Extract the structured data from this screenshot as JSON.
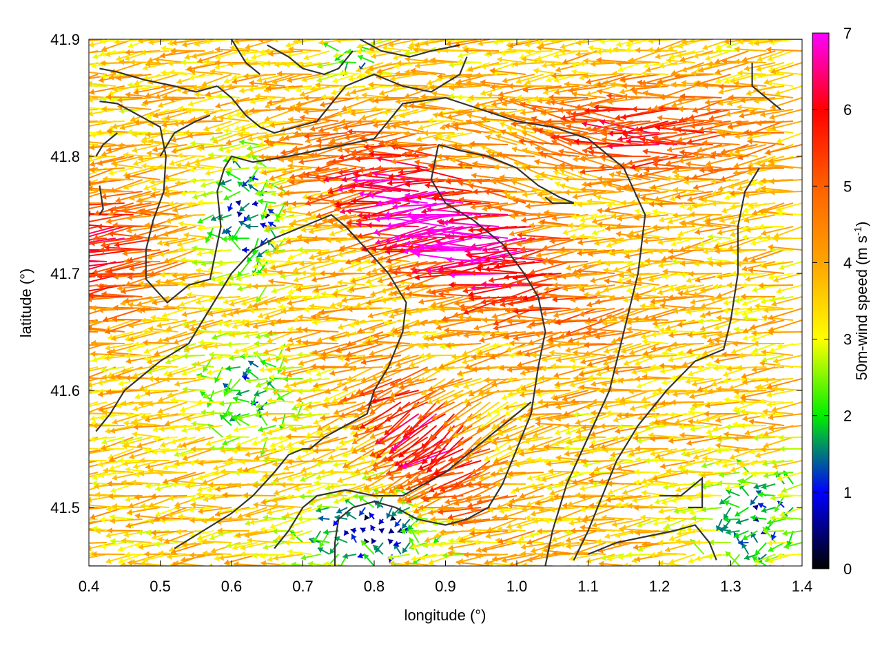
{
  "chart_data": {
    "type": "vector-field",
    "xlabel": "longitude (°)",
    "ylabel": "latitude (°)",
    "xlim": [
      0.4,
      1.4
    ],
    "ylim": [
      41.45,
      41.9
    ],
    "x_ticks": [
      0.4,
      0.5,
      0.6,
      0.7,
      0.8,
      0.9,
      1.0,
      1.1,
      1.2,
      1.3,
      1.4
    ],
    "x_tick_labels": [
      "0.4",
      "0.5",
      "0.6",
      "0.7",
      "0.8",
      "0.9",
      "1.0",
      "1.1",
      "1.2",
      "1.3",
      "1.4"
    ],
    "y_ticks": [
      41.5,
      41.6,
      41.7,
      41.8,
      41.9
    ],
    "y_tick_labels": [
      "41.5",
      "41.6",
      "41.7",
      "41.8",
      "41.9"
    ],
    "grid": false,
    "colorbar": {
      "label_main": "50m-wind speed (m s",
      "label_sup": "-1",
      "label_close": ")",
      "range": [
        0,
        7
      ],
      "ticks": [
        0,
        1,
        2,
        3,
        4,
        5,
        6,
        7
      ],
      "tick_labels": [
        "0",
        "1",
        "2",
        "3",
        "4",
        "5",
        "6",
        "7"
      ],
      "stops": [
        {
          "v": 0,
          "color": "#000000"
        },
        {
          "v": 1,
          "color": "#0000ff"
        },
        {
          "v": 2,
          "color": "#00ee00"
        },
        {
          "v": 3,
          "color": "#ffff00"
        },
        {
          "v": 4,
          "color": "#ffa500"
        },
        {
          "v": 5,
          "color": "#ff6000"
        },
        {
          "v": 6,
          "color": "#ff0000"
        },
        {
          "v": 7,
          "color": "#ff00ff"
        }
      ]
    },
    "wind_field": {
      "x_step": 0.0125,
      "y_step": 0.01,
      "direction": "mostly from east to west",
      "speed_range": [
        0,
        7
      ]
    },
    "contours": [
      [
        [
          0.415,
          41.875
        ],
        [
          0.44,
          41.872
        ],
        [
          0.48,
          41.865
        ],
        [
          0.52,
          41.86
        ],
        [
          0.55,
          41.855
        ],
        [
          0.58,
          41.86
        ]
      ],
      [
        [
          0.415,
          41.847
        ],
        [
          0.44,
          41.845
        ],
        [
          0.47,
          41.835
        ],
        [
          0.5,
          41.825
        ],
        [
          0.508,
          41.8
        ],
        [
          0.505,
          41.77
        ],
        [
          0.49,
          41.745
        ],
        [
          0.48,
          41.72
        ],
        [
          0.48,
          41.695
        ],
        [
          0.51,
          41.675
        ],
        [
          0.54,
          41.69
        ],
        [
          0.57,
          41.695
        ],
        [
          0.585,
          41.74
        ],
        [
          0.58,
          41.77
        ],
        [
          0.59,
          41.79
        ],
        [
          0.6,
          41.8
        ],
        [
          0.63,
          41.795
        ],
        [
          0.68,
          41.8
        ],
        [
          0.72,
          41.805
        ],
        [
          0.76,
          41.81
        ],
        [
          0.8,
          41.815
        ],
        [
          0.84,
          41.845
        ],
        [
          0.9,
          41.85
        ],
        [
          0.95,
          41.84
        ],
        [
          1.0,
          41.83
        ],
        [
          1.05,
          41.825
        ],
        [
          1.1,
          41.815
        ],
        [
          1.15,
          41.79
        ],
        [
          1.18,
          41.75
        ],
        [
          1.17,
          41.7
        ],
        [
          1.15,
          41.65
        ],
        [
          1.13,
          41.6
        ],
        [
          1.1,
          41.56
        ],
        [
          1.07,
          41.52
        ],
        [
          1.05,
          41.48
        ],
        [
          1.04,
          41.45
        ]
      ],
      [
        [
          0.415,
          41.775
        ],
        [
          0.42,
          41.755
        ],
        [
          0.415,
          41.75
        ]
      ],
      [
        [
          0.41,
          41.565
        ],
        [
          0.43,
          41.58
        ],
        [
          0.45,
          41.6
        ],
        [
          0.47,
          41.61
        ],
        [
          0.5,
          41.625
        ],
        [
          0.54,
          41.64
        ],
        [
          0.57,
          41.67
        ],
        [
          0.6,
          41.7
        ],
        [
          0.63,
          41.72
        ],
        [
          0.66,
          41.73
        ],
        [
          0.7,
          41.74
        ],
        [
          0.74,
          41.75
        ],
        [
          0.76,
          41.74
        ],
        [
          0.79,
          41.72
        ],
        [
          0.82,
          41.7
        ],
        [
          0.845,
          41.675
        ],
        [
          0.84,
          41.65
        ],
        [
          0.82,
          41.62
        ],
        [
          0.8,
          41.6
        ],
        [
          0.79,
          41.58
        ],
        [
          0.76,
          41.57
        ],
        [
          0.73,
          41.56
        ],
        [
          0.71,
          41.55
        ],
        [
          0.7,
          41.55
        ],
        [
          0.68,
          41.545
        ],
        [
          0.66,
          41.53
        ],
        [
          0.63,
          41.51
        ],
        [
          0.6,
          41.495
        ],
        [
          0.56,
          41.48
        ],
        [
          0.52,
          41.465
        ]
      ],
      [
        [
          0.58,
          41.86
        ],
        [
          0.6,
          41.85
        ],
        [
          0.62,
          41.835
        ],
        [
          0.64,
          41.825
        ],
        [
          0.66,
          41.82
        ],
        [
          0.69,
          41.825
        ],
        [
          0.72,
          41.83
        ],
        [
          0.74,
          41.845
        ],
        [
          0.76,
          41.86
        ],
        [
          0.8,
          41.87
        ],
        [
          0.84,
          41.86
        ],
        [
          0.88,
          41.855
        ],
        [
          0.92,
          41.87
        ],
        [
          0.93,
          41.885
        ]
      ],
      [
        [
          0.65,
          41.895
        ],
        [
          0.68,
          41.885
        ],
        [
          0.7,
          41.875
        ],
        [
          0.73,
          41.87
        ],
        [
          0.75,
          41.875
        ],
        [
          0.77,
          41.89
        ]
      ],
      [
        [
          0.78,
          41.9
        ],
        [
          0.81,
          41.89
        ],
        [
          0.85,
          41.885
        ],
        [
          0.88,
          41.89
        ],
        [
          0.92,
          41.895
        ]
      ],
      [
        [
          0.89,
          41.81
        ],
        [
          0.92,
          41.805
        ],
        [
          0.96,
          41.8
        ],
        [
          1.0,
          41.79
        ],
        [
          1.03,
          41.775
        ],
        [
          1.06,
          41.765
        ],
        [
          1.08,
          41.76
        ],
        [
          1.05,
          41.76
        ],
        [
          1.04,
          41.765
        ]
      ],
      [
        [
          0.89,
          41.81
        ],
        [
          0.88,
          41.78
        ],
        [
          0.9,
          41.76
        ],
        [
          0.94,
          41.745
        ],
        [
          0.98,
          41.725
        ],
        [
          1.01,
          41.7
        ],
        [
          1.03,
          41.68
        ],
        [
          1.04,
          41.65
        ],
        [
          1.03,
          41.62
        ],
        [
          1.02,
          41.58
        ],
        [
          1.0,
          41.55
        ],
        [
          0.98,
          41.52
        ],
        [
          0.96,
          41.5
        ],
        [
          0.93,
          41.49
        ],
        [
          0.9,
          41.485
        ],
        [
          0.86,
          41.49
        ],
        [
          0.83,
          41.5
        ],
        [
          0.8,
          41.505
        ],
        [
          0.77,
          41.5
        ],
        [
          0.75,
          41.49
        ],
        [
          0.745,
          41.47
        ],
        [
          0.745,
          41.45
        ]
      ],
      [
        [
          0.66,
          41.465
        ],
        [
          0.68,
          41.48
        ],
        [
          0.7,
          41.5
        ],
        [
          0.72,
          41.51
        ],
        [
          0.76,
          41.515
        ],
        [
          0.8,
          41.51
        ],
        [
          0.84,
          41.51
        ],
        [
          0.87,
          41.52
        ],
        [
          0.9,
          41.53
        ],
        [
          0.93,
          41.545
        ],
        [
          0.96,
          41.56
        ],
        [
          0.98,
          41.57
        ],
        [
          1.0,
          41.58
        ],
        [
          1.02,
          41.59
        ]
      ],
      [
        [
          1.34,
          41.79
        ],
        [
          1.32,
          41.77
        ],
        [
          1.31,
          41.74
        ],
        [
          1.31,
          41.7
        ],
        [
          1.3,
          41.66
        ],
        [
          1.29,
          41.635
        ],
        [
          1.25,
          41.625
        ],
        [
          1.21,
          41.6
        ],
        [
          1.17,
          41.57
        ],
        [
          1.14,
          41.54
        ],
        [
          1.12,
          41.51
        ],
        [
          1.1,
          41.48
        ],
        [
          1.08,
          41.455
        ]
      ],
      [
        [
          1.33,
          41.88
        ],
        [
          1.33,
          41.86
        ],
        [
          1.35,
          41.85
        ],
        [
          1.37,
          41.84
        ]
      ],
      [
        [
          1.1,
          41.46
        ],
        [
          1.14,
          41.47
        ],
        [
          1.18,
          41.475
        ],
        [
          1.22,
          41.48
        ],
        [
          1.25,
          41.485
        ],
        [
          1.27,
          41.47
        ],
        [
          1.28,
          41.455
        ]
      ],
      [
        [
          1.2,
          41.51
        ],
        [
          1.23,
          41.51
        ],
        [
          1.25,
          41.52
        ],
        [
          1.26,
          41.525
        ],
        [
          1.26,
          41.5
        ],
        [
          1.24,
          41.5
        ]
      ],
      [
        [
          0.44,
          41.82
        ],
        [
          0.42,
          41.81
        ],
        [
          0.41,
          41.8
        ]
      ],
      [
        [
          0.5,
          41.8
        ],
        [
          0.52,
          41.82
        ],
        [
          0.55,
          41.83
        ],
        [
          0.57,
          41.835
        ]
      ],
      [
        [
          0.6,
          41.9
        ],
        [
          0.62,
          41.88
        ],
        [
          0.64,
          41.87
        ]
      ]
    ]
  }
}
